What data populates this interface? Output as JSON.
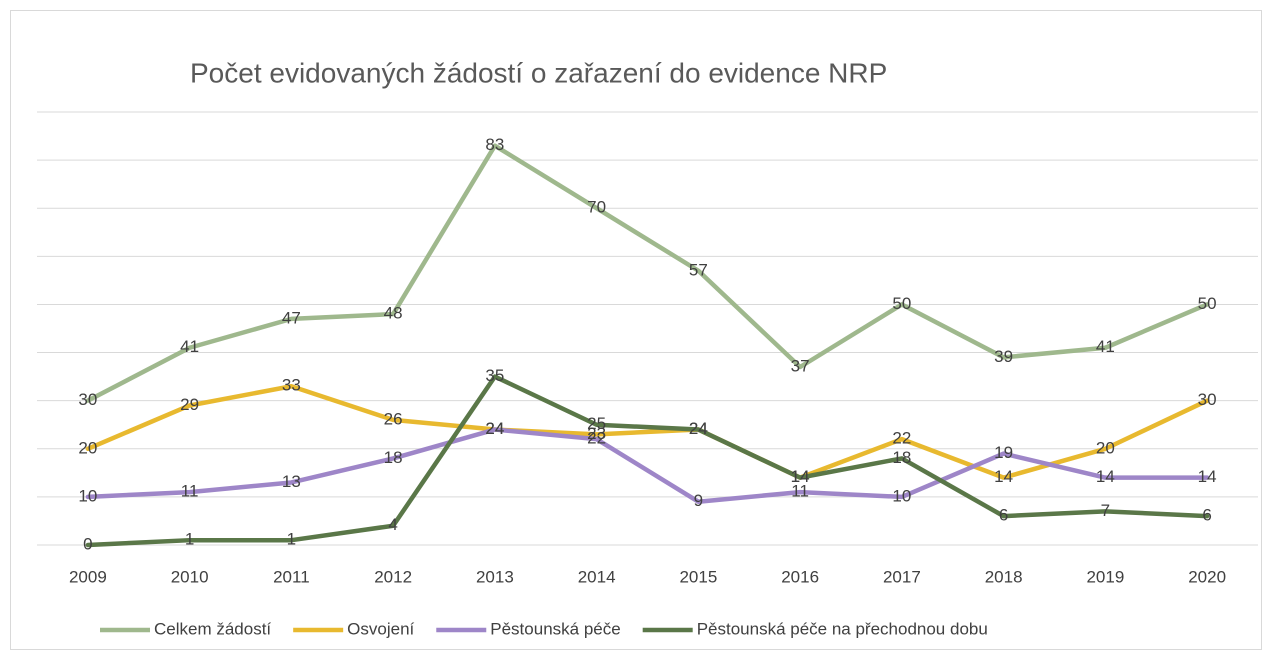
{
  "chart_data": {
    "type": "line",
    "title": "Počet evidovaných žádostí o zařazení do evidence NRP",
    "categories": [
      "2009",
      "2010",
      "2011",
      "2012",
      "2013",
      "2014",
      "2015",
      "2016",
      "2017",
      "2018",
      "2019",
      "2020"
    ],
    "series": [
      {
        "name": "Celkem žádostí",
        "color": "#9fb88d",
        "values": [
          30,
          41,
          47,
          48,
          83,
          70,
          57,
          37,
          50,
          39,
          41,
          50
        ]
      },
      {
        "name": "Osvojení",
        "color": "#e8b92f",
        "values": [
          20,
          29,
          33,
          26,
          24,
          23,
          24,
          14,
          22,
          14,
          20,
          30
        ]
      },
      {
        "name": "Pěstounská péče",
        "color": "#9e86c8",
        "values": [
          10,
          11,
          13,
          18,
          24,
          22,
          9,
          11,
          10,
          19,
          14,
          14
        ]
      },
      {
        "name": "Pěstounská péče na přechodnou dobu",
        "color": "#5a7748",
        "values": [
          0,
          1,
          1,
          4,
          35,
          25,
          24,
          14,
          18,
          6,
          7,
          6
        ]
      }
    ],
    "ylim": [
      0,
      90
    ],
    "yticks": [
      0,
      10,
      20,
      30,
      40,
      50,
      60,
      70,
      80,
      90
    ],
    "grid": true,
    "legend": "bottom"
  }
}
